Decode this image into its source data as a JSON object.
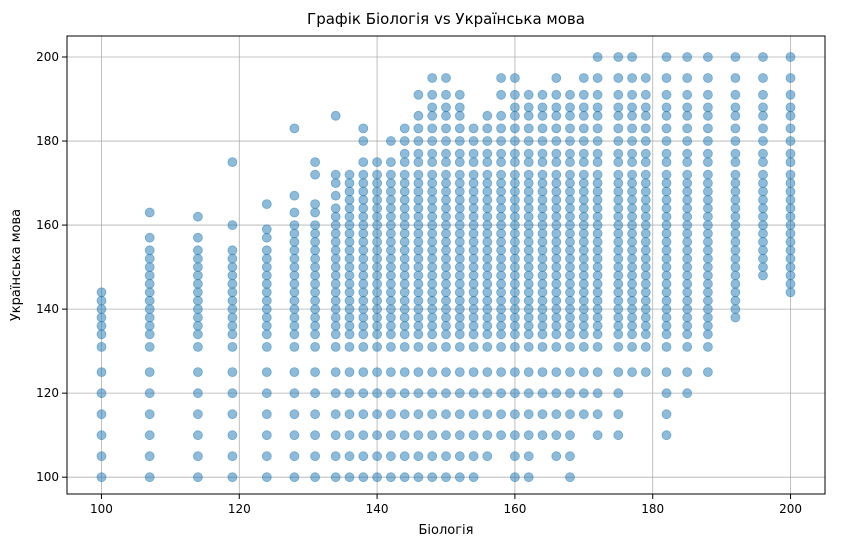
{
  "chart_data": {
    "type": "scatter",
    "title": "Графік Біологія vs Українська мова",
    "xlabel": "Біологія",
    "ylabel": "Українська мова",
    "xlim": [
      95,
      205
    ],
    "ylim": [
      96,
      205
    ],
    "xticks": [
      100,
      120,
      140,
      160,
      180,
      200
    ],
    "yticks": [
      100,
      120,
      140,
      160,
      180,
      200
    ],
    "grid": true,
    "point_color": "#1f77b4",
    "point_opacity": 0.5,
    "x_columns": [
      100,
      107,
      114,
      119,
      124,
      128,
      131,
      134,
      136,
      138,
      140,
      142,
      144,
      146,
      148,
      150,
      152,
      154,
      156,
      158,
      160,
      162,
      164,
      166,
      168,
      170,
      172,
      175,
      177,
      179,
      182,
      185,
      188,
      192,
      196,
      200
    ],
    "y_levels": [
      100,
      105,
      110,
      115,
      120,
      125,
      131,
      134,
      136,
      138,
      140,
      142,
      144,
      146,
      148,
      150,
      152,
      154,
      156,
      158,
      160,
      162,
      164,
      166,
      168,
      170,
      172,
      175,
      177,
      180,
      183,
      186,
      188,
      191,
      195,
      200
    ],
    "series": [
      {
        "x": 100,
        "y_min": 100,
        "y_max": 145,
        "extra": []
      },
      {
        "x": 107,
        "y_min": 100,
        "y_max": 148,
        "extra": [
          150,
          152,
          154,
          157,
          163
        ]
      },
      {
        "x": 114,
        "y_min": 100,
        "y_max": 150,
        "extra": [
          152,
          154,
          157,
          162
        ]
      },
      {
        "x": 119,
        "y_min": 100,
        "y_max": 152,
        "extra": [
          154,
          160,
          175
        ]
      },
      {
        "x": 124,
        "y_min": 100,
        "y_max": 155,
        "extra": [
          157,
          159,
          165
        ]
      },
      {
        "x": 128,
        "y_min": 100,
        "y_max": 158,
        "extra": [
          160,
          163,
          167,
          183
        ]
      },
      {
        "x": 131,
        "y_min": 100,
        "y_max": 160,
        "extra": [
          163,
          165,
          172,
          175
        ]
      },
      {
        "x": 134,
        "y_min": 100,
        "y_max": 165,
        "extra": [
          167,
          170,
          172,
          186
        ]
      },
      {
        "x": 136,
        "y_min": 100,
        "y_max": 168,
        "extra": [
          170,
          172
        ]
      },
      {
        "x": 138,
        "y_min": 100,
        "y_max": 168,
        "extra": [
          170,
          172,
          175,
          180,
          183
        ]
      },
      {
        "x": 140,
        "y_min": 100,
        "y_max": 170,
        "extra": [
          172,
          175
        ]
      },
      {
        "x": 142,
        "y_min": 100,
        "y_max": 170,
        "extra": [
          172,
          175,
          180
        ]
      },
      {
        "x": 144,
        "y_min": 100,
        "y_max": 175,
        "extra": [
          177,
          180,
          183
        ]
      },
      {
        "x": 146,
        "y_min": 100,
        "y_max": 180,
        "extra": [
          183,
          186,
          191
        ]
      },
      {
        "x": 148,
        "y_min": 100,
        "y_max": 180,
        "extra": [
          183,
          186,
          188,
          191,
          195
        ]
      },
      {
        "x": 150,
        "y_min": 100,
        "y_max": 180,
        "extra": [
          183,
          186,
          188,
          191,
          195
        ]
      },
      {
        "x": 152,
        "y_min": 100,
        "y_max": 180,
        "extra": [
          183,
          186,
          188,
          191
        ]
      },
      {
        "x": 154,
        "y_min": 100,
        "y_max": 183,
        "extra": []
      },
      {
        "x": 156,
        "y_min": 105,
        "y_max": 183,
        "extra": [
          186
        ]
      },
      {
        "x": 158,
        "y_min": 110,
        "y_max": 186,
        "extra": [
          191,
          195
        ]
      },
      {
        "x": 160,
        "y_min": 100,
        "y_max": 186,
        "extra": [
          188,
          191,
          195
        ]
      },
      {
        "x": 162,
        "y_min": 100,
        "y_max": 186,
        "extra": [
          188,
          191
        ]
      },
      {
        "x": 164,
        "y_min": 110,
        "y_max": 186,
        "extra": [
          188,
          191
        ]
      },
      {
        "x": 166,
        "y_min": 105,
        "y_max": 186,
        "extra": [
          188,
          191,
          195
        ]
      },
      {
        "x": 168,
        "y_min": 100,
        "y_max": 186,
        "extra": [
          188,
          191
        ]
      },
      {
        "x": 170,
        "y_min": 115,
        "y_max": 186,
        "extra": [
          188,
          191,
          195
        ]
      },
      {
        "x": 172,
        "y_min": 110,
        "y_max": 186,
        "extra": [
          188,
          191,
          195,
          200
        ]
      },
      {
        "x": 175,
        "y_min": 110,
        "y_max": 195,
        "extra": [
          200
        ]
      },
      {
        "x": 177,
        "y_min": 125,
        "y_max": 195,
        "extra": [
          200
        ]
      },
      {
        "x": 179,
        "y_min": 125,
        "y_max": 195,
        "extra": []
      },
      {
        "x": 182,
        "y_min": 110,
        "y_max": 200,
        "extra": []
      },
      {
        "x": 185,
        "y_min": 120,
        "y_max": 200,
        "extra": []
      },
      {
        "x": 188,
        "y_min": 125,
        "y_max": 200,
        "extra": []
      },
      {
        "x": 192,
        "y_min": 138,
        "y_max": 200,
        "extra": []
      },
      {
        "x": 196,
        "y_min": 148,
        "y_max": 200,
        "extra": []
      },
      {
        "x": 200,
        "y_min": 144,
        "y_max": 200,
        "extra": []
      }
    ]
  }
}
